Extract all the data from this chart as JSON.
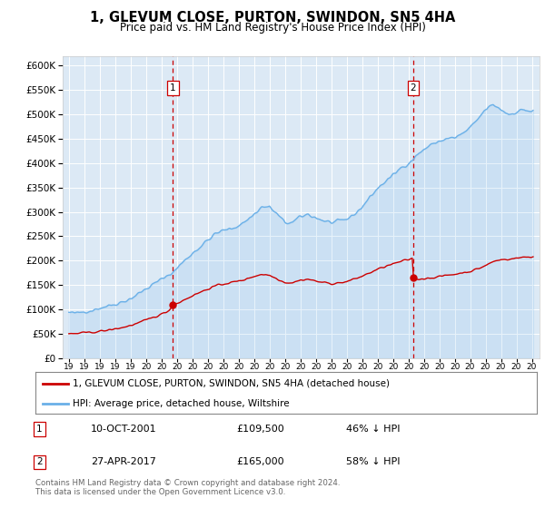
{
  "title": "1, GLEVUM CLOSE, PURTON, SWINDON, SN5 4HA",
  "subtitle": "Price paid vs. HM Land Registry's House Price Index (HPI)",
  "hpi_label": "HPI: Average price, detached house, Wiltshire",
  "property_label": "1, GLEVUM CLOSE, PURTON, SWINDON, SN5 4HA (detached house)",
  "sale1_date": "10-OCT-2001",
  "sale1_price": 109500,
  "sale1_below": "46% ↓ HPI",
  "sale1_year": 2001.75,
  "sale2_date": "27-APR-2017",
  "sale2_price": 165000,
  "sale2_below": "58% ↓ HPI",
  "sale2_year": 2017.32,
  "footer": "Contains HM Land Registry data © Crown copyright and database right 2024.\nThis data is licensed under the Open Government Licence v3.0.",
  "background_color": "#dce9f5",
  "plot_bg": "#dce9f5",
  "hpi_color": "#6ab0e8",
  "property_color": "#cc0000",
  "vline_color": "#cc0000",
  "ylim": [
    0,
    620000
  ],
  "yticks": [
    0,
    50000,
    100000,
    150000,
    200000,
    250000,
    300000,
    350000,
    400000,
    450000,
    500000,
    550000,
    600000
  ],
  "xlim": [
    1994.6,
    2025.5
  ]
}
